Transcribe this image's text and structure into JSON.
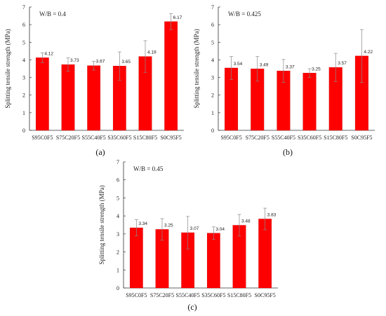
{
  "figure": {
    "colors": {
      "bar": "#ff0000",
      "axis": "#333333",
      "error_bar": "#888888"
    }
  },
  "chart_data": [
    {
      "type": "bar",
      "panel_label": "(a)",
      "annotation": "W/B = 0.4",
      "ylabel": "Splitting tensile strength (MPa)",
      "ylim": [
        0,
        7
      ],
      "yticks": [
        0,
        1,
        2,
        3,
        4,
        5,
        6,
        7
      ],
      "categories": [
        "S95C0F5",
        "S75C20F5",
        "S55C40F5",
        "S35C60F5",
        "S15C80F5",
        "S0C95F5"
      ],
      "values": [
        4.12,
        3.73,
        3.67,
        3.65,
        4.19,
        6.17
      ],
      "value_labels": [
        "4.12",
        "3.73",
        "3.67",
        "3.65",
        "4.19",
        "6.17"
      ],
      "errors": [
        0.28,
        0.38,
        0.25,
        0.8,
        0.9,
        0.45
      ]
    },
    {
      "type": "bar",
      "panel_label": "(b)",
      "annotation": "W/B = 0.425",
      "ylabel": "Splitting tensile strength (MPa)",
      "ylim": [
        0,
        7
      ],
      "yticks": [
        0,
        1,
        2,
        3,
        4,
        5,
        6,
        7
      ],
      "categories": [
        "S95C0F5",
        "S75C20F5",
        "S55C40F5",
        "S35C60F5",
        "S15C80F5",
        "S0C95F5"
      ],
      "values": [
        3.54,
        3.49,
        3.37,
        3.25,
        3.57,
        4.22
      ],
      "value_labels": [
        "3.54",
        "3.49",
        "3.37",
        "3.25",
        "3.57",
        "4.22"
      ],
      "errors": [
        0.65,
        0.7,
        0.65,
        0.25,
        0.8,
        1.5
      ]
    },
    {
      "type": "bar",
      "panel_label": "(c)",
      "annotation": "W/B = 0.45",
      "ylabel": "Splitting tensile strength (MPa)",
      "ylim": [
        0,
        7
      ],
      "yticks": [
        0,
        1,
        2,
        3,
        4,
        5,
        6,
        7
      ],
      "categories": [
        "S95C0F5",
        "S75C20F5",
        "S55C40F5",
        "S35C60F5",
        "S15C80F5",
        "S0C95F5"
      ],
      "values": [
        3.34,
        3.25,
        3.07,
        3.04,
        3.48,
        3.83
      ],
      "value_labels": [
        "3.34",
        "3.25",
        "3.07",
        "3.04",
        "3.48",
        "3.83"
      ],
      "errors": [
        0.45,
        0.6,
        0.9,
        0.35,
        0.6,
        0.6
      ]
    }
  ]
}
